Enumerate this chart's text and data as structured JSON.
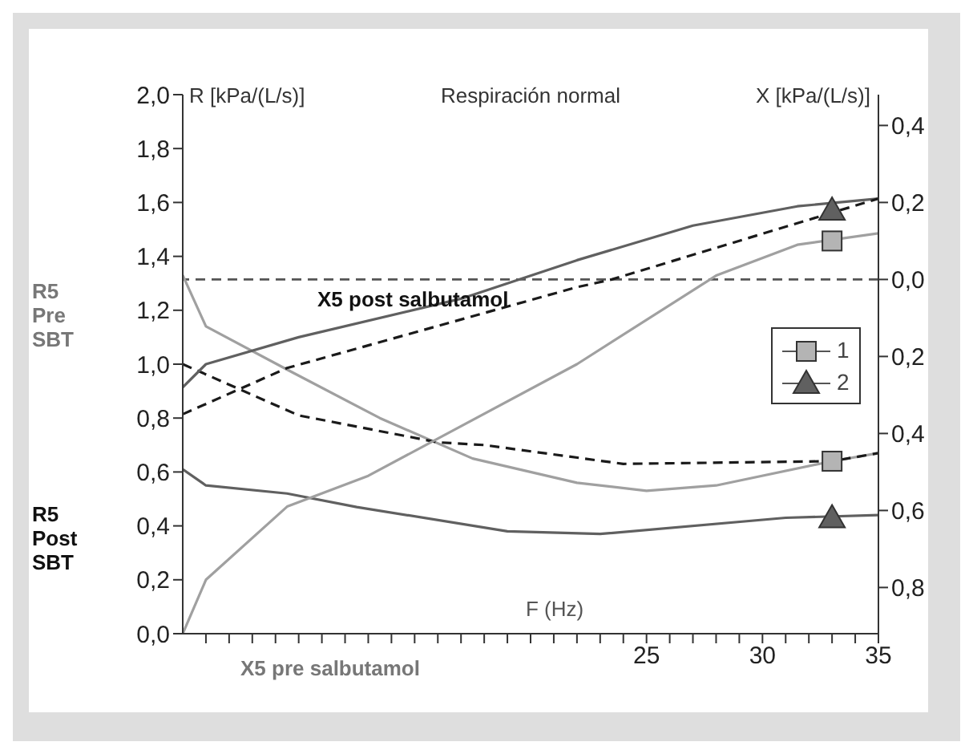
{
  "chart_data": {
    "type": "line",
    "title": "Respiración normal",
    "xlabel": "F (Hz)",
    "ylabel": "R [kPa/(L/s)]",
    "y2label": "X [kPa/(L/s)]",
    "annotations": [
      "X5 post salbutamol",
      "X5 pre salbutamol",
      "R5 Pre SBT",
      "R5 Post SBT"
    ],
    "xlim": [
      5,
      35
    ],
    "xticks": [
      {
        "value": 6,
        "label": null
      },
      {
        "value": 7,
        "label": null
      },
      {
        "value": 8,
        "label": null
      },
      {
        "value": 9,
        "label": null
      },
      {
        "value": 10,
        "label": null
      },
      {
        "value": 11,
        "label": null
      },
      {
        "value": 12,
        "label": null
      },
      {
        "value": 13,
        "label": null
      },
      {
        "value": 14,
        "label": null
      },
      {
        "value": 15,
        "label": null
      },
      {
        "value": 16,
        "label": null
      },
      {
        "value": 17,
        "label": null
      },
      {
        "value": 18,
        "label": null
      },
      {
        "value": 19,
        "label": null
      },
      {
        "value": 20,
        "label": null
      },
      {
        "value": 21,
        "label": null
      },
      {
        "value": 22,
        "label": null
      },
      {
        "value": 23,
        "label": null
      },
      {
        "value": 24,
        "label": null
      },
      25,
      {
        "value": 26,
        "label": null
      },
      {
        "value": 27,
        "label": null
      },
      {
        "value": 28,
        "label": null
      },
      {
        "value": 29,
        "label": null
      },
      30,
      {
        "value": 31,
        "label": null
      },
      {
        "value": 32,
        "label": null
      },
      {
        "value": 33,
        "label": null
      },
      {
        "value": 34,
        "label": null
      },
      35
    ],
    "ylim": [
      0,
      2
    ],
    "yticks": [
      {
        "value": 0,
        "label": "0,0"
      },
      {
        "value": 0.2,
        "label": "0,2"
      },
      {
        "value": 0.4,
        "label": "0,4"
      },
      {
        "value": 0.6,
        "label": "0,6"
      },
      {
        "value": 0.8,
        "label": "0,8"
      },
      {
        "value": 1,
        "label": "1,0"
      },
      {
        "value": 1.2,
        "label": "1,2"
      },
      {
        "value": 1.4,
        "label": "1,4"
      },
      {
        "value": 1.6,
        "label": "1,6"
      },
      {
        "value": 1.8,
        "label": "1,8"
      },
      {
        "value": 2,
        "label": "2,0"
      }
    ],
    "y2lim": [
      -0.92,
      0.48
    ],
    "y2ticks": [
      {
        "value": 0.4,
        "label": "0,4"
      },
      {
        "value": 0.2,
        "label": "0,2"
      },
      {
        "value": 0,
        "label": "0,0"
      },
      {
        "value": -0.2,
        "label": "0,2"
      },
      {
        "value": -0.4,
        "label": "0,4"
      },
      {
        "value": -0.6,
        "label": "0,6"
      },
      {
        "value": -0.8,
        "label": "0,8"
      }
    ],
    "ref_lines": [
      {
        "axis": "y2",
        "value": 0,
        "label": null,
        "color": "#555555",
        "line_style": "dashed"
      }
    ],
    "grid": false,
    "legend": "right",
    "marker": "none",
    "series": [
      {
        "color": "#a0a0a0",
        "line_style": "solid",
        "x": [
          5,
          6,
          9.5,
          13.5,
          17.5,
          22,
          25,
          28,
          33,
          35
        ],
        "values": [
          1.33,
          1.14,
          0.98,
          0.8,
          0.65,
          0.56,
          0.53,
          0.55,
          0.64,
          0.67
        ]
      },
      {
        "color": "#606060",
        "line_style": "solid",
        "x": [
          5,
          6,
          9.5,
          12.5,
          19,
          23,
          31,
          35
        ],
        "values": [
          0.61,
          0.55,
          0.52,
          0.47,
          0.38,
          0.37,
          0.43,
          0.44
        ]
      },
      {
        "color": "#1a1a1a",
        "line_style": "dashed",
        "x": [
          5,
          10,
          16,
          18,
          24,
          33,
          35
        ],
        "values": [
          1.0,
          0.81,
          0.71,
          0.7,
          0.63,
          0.64,
          0.67
        ]
      },
      {
        "color": "#a0a0a0",
        "line_style": "solid",
        "axis": "y2",
        "x": [
          5,
          6,
          9.5,
          13,
          22,
          28,
          31.5,
          35
        ],
        "values": [
          -0.92,
          -0.78,
          -0.59,
          -0.51,
          -0.22,
          0.01,
          0.09,
          0.12
        ]
      },
      {
        "color": "#606060",
        "line_style": "solid",
        "axis": "y2",
        "x": [
          5,
          6,
          10,
          17,
          22,
          27,
          31.5,
          35
        ],
        "values": [
          -0.28,
          -0.22,
          -0.15,
          -0.05,
          0.05,
          0.14,
          0.19,
          0.21
        ]
      },
      {
        "color": "#1a1a1a",
        "line_style": "dashed",
        "axis": "y2",
        "x": [
          5,
          9.5,
          22,
          23.5,
          35
        ],
        "values": [
          -0.35,
          -0.23,
          -0.02,
          0,
          0.21
        ]
      },
      {
        "type": "scatter",
        "name": "1",
        "color": "#b4b4b4",
        "marker": "square",
        "x": [
          33
        ],
        "values": [
          0.64
        ]
      },
      {
        "type": "scatter",
        "color": "#b4b4b4",
        "marker": "square",
        "axis": "y2",
        "x": [
          33
        ],
        "values": [
          0.1
        ]
      },
      {
        "type": "scatter",
        "name": "2",
        "color": "#606060",
        "marker": "triangle",
        "x": [
          33
        ],
        "values": [
          0.43
        ]
      },
      {
        "type": "scatter",
        "color": "#606060",
        "marker": "triangle",
        "axis": "y2",
        "x": [
          33
        ],
        "values": [
          0.18
        ]
      }
    ]
  }
}
